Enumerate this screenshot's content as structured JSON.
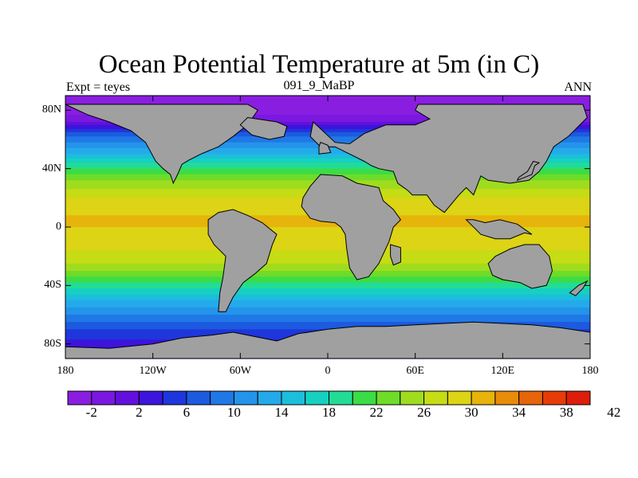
{
  "chart_data": {
    "type": "heatmap",
    "title": "Ocean Potential Temperature at 5m (in C)",
    "subtitle_left": "Expt = teyes",
    "subtitle_center": "091_9_MaBP",
    "subtitle_right": "ANN",
    "x_range": [
      -180,
      180
    ],
    "y_range": [
      -90,
      90
    ],
    "x_ticks": [
      {
        "value": -180,
        "label": "180"
      },
      {
        "value": -120,
        "label": "120W"
      },
      {
        "value": -60,
        "label": "60W"
      },
      {
        "value": 0,
        "label": "0"
      },
      {
        "value": 60,
        "label": "60E"
      },
      {
        "value": 120,
        "label": "120E"
      },
      {
        "value": 180,
        "label": "180"
      }
    ],
    "y_ticks": [
      {
        "value": 80,
        "label": "80N"
      },
      {
        "value": 40,
        "label": "40N"
      },
      {
        "value": 0,
        "label": "0"
      },
      {
        "value": -40,
        "label": "40S"
      },
      {
        "value": -80,
        "label": "80S"
      }
    ],
    "zonal_temperature_profile": [
      {
        "lat": 90,
        "temp": -4
      },
      {
        "lat": 80,
        "temp": -3
      },
      {
        "lat": 72,
        "temp": 0
      },
      {
        "lat": 62,
        "temp": 8
      },
      {
        "lat": 52,
        "temp": 13
      },
      {
        "lat": 42,
        "temp": 19
      },
      {
        "lat": 32,
        "temp": 24
      },
      {
        "lat": 20,
        "temp": 28
      },
      {
        "lat": 8,
        "temp": 30
      },
      {
        "lat": 0,
        "temp": 30
      },
      {
        "lat": -10,
        "temp": 29
      },
      {
        "lat": -22,
        "temp": 27
      },
      {
        "lat": -32,
        "temp": 23
      },
      {
        "lat": -42,
        "temp": 18
      },
      {
        "lat": -52,
        "temp": 13
      },
      {
        "lat": -62,
        "temp": 9
      },
      {
        "lat": -72,
        "temp": 5
      },
      {
        "lat": -82,
        "temp": 3
      },
      {
        "lat": -90,
        "temp": 2
      }
    ],
    "land_masses": [
      {
        "name": "north-america",
        "coords": [
          [
            -180,
            84
          ],
          [
            -165,
            77
          ],
          [
            -150,
            72
          ],
          [
            -135,
            66
          ],
          [
            -125,
            58
          ],
          [
            -118,
            45
          ],
          [
            -113,
            40
          ],
          [
            -108,
            36
          ],
          [
            -106,
            30
          ],
          [
            -103,
            36
          ],
          [
            -100,
            43
          ],
          [
            -95,
            46
          ],
          [
            -87,
            50
          ],
          [
            -75,
            55
          ],
          [
            -65,
            62
          ],
          [
            -55,
            70
          ],
          [
            -48,
            80
          ],
          [
            -55,
            84
          ],
          [
            -80,
            84
          ],
          [
            -120,
            84
          ],
          [
            -150,
            84
          ]
        ]
      },
      {
        "name": "greenland",
        "coords": [
          [
            -55,
            75
          ],
          [
            -35,
            72
          ],
          [
            -28,
            69
          ],
          [
            -30,
            62
          ],
          [
            -40,
            60
          ],
          [
            -52,
            63
          ],
          [
            -60,
            70
          ]
        ]
      },
      {
        "name": "europe-asia",
        "coords": [
          [
            -10,
            72
          ],
          [
            5,
            58
          ],
          [
            15,
            57
          ],
          [
            25,
            64
          ],
          [
            40,
            70
          ],
          [
            60,
            70
          ],
          [
            70,
            74
          ],
          [
            60,
            80
          ],
          [
            62,
            84
          ],
          [
            100,
            84
          ],
          [
            140,
            84
          ],
          [
            175,
            84
          ],
          [
            178,
            75
          ],
          [
            175,
            72
          ],
          [
            165,
            62
          ],
          [
            155,
            55
          ],
          [
            150,
            45
          ],
          [
            145,
            38
          ],
          [
            138,
            32
          ],
          [
            125,
            30
          ],
          [
            110,
            32
          ],
          [
            105,
            35
          ],
          [
            100,
            22
          ],
          [
            95,
            27
          ],
          [
            90,
            22
          ],
          [
            80,
            10
          ],
          [
            73,
            15
          ],
          [
            68,
            22
          ],
          [
            58,
            22
          ],
          [
            55,
            25
          ],
          [
            48,
            30
          ],
          [
            45,
            38
          ],
          [
            35,
            40
          ],
          [
            30,
            42
          ],
          [
            25,
            45
          ],
          [
            15,
            50
          ],
          [
            5,
            55
          ],
          [
            -5,
            55
          ],
          [
            -12,
            62
          ]
        ]
      },
      {
        "name": "africa",
        "coords": [
          [
            -17,
            20
          ],
          [
            -18,
            14
          ],
          [
            -12,
            6
          ],
          [
            -5,
            4
          ],
          [
            5,
            3
          ],
          [
            9,
            0
          ],
          [
            12,
            -5
          ],
          [
            13,
            -15
          ],
          [
            15,
            -28
          ],
          [
            20,
            -36
          ],
          [
            28,
            -34
          ],
          [
            35,
            -25
          ],
          [
            42,
            -10
          ],
          [
            45,
            0
          ],
          [
            50,
            5
          ],
          [
            45,
            12
          ],
          [
            38,
            18
          ],
          [
            35,
            27
          ],
          [
            20,
            30
          ],
          [
            10,
            35
          ],
          [
            -5,
            36
          ],
          [
            -12,
            28
          ]
        ]
      },
      {
        "name": "south-america",
        "coords": [
          [
            -82,
            5
          ],
          [
            -75,
            10
          ],
          [
            -65,
            12
          ],
          [
            -55,
            8
          ],
          [
            -45,
            3
          ],
          [
            -35,
            -5
          ],
          [
            -38,
            -12
          ],
          [
            -42,
            -25
          ],
          [
            -50,
            -32
          ],
          [
            -58,
            -38
          ],
          [
            -65,
            -48
          ],
          [
            -70,
            -58
          ],
          [
            -75,
            -58
          ],
          [
            -74,
            -45
          ],
          [
            -72,
            -35
          ],
          [
            -70,
            -20
          ],
          [
            -78,
            -12
          ],
          [
            -82,
            -5
          ]
        ]
      },
      {
        "name": "australia",
        "coords": [
          [
            110,
            -25
          ],
          [
            115,
            -20
          ],
          [
            125,
            -15
          ],
          [
            135,
            -12
          ],
          [
            145,
            -12
          ],
          [
            152,
            -20
          ],
          [
            154,
            -30
          ],
          [
            150,
            -40
          ],
          [
            140,
            -42
          ],
          [
            132,
            -38
          ],
          [
            120,
            -36
          ],
          [
            113,
            -33
          ]
        ]
      },
      {
        "name": "antarctica",
        "coords": [
          [
            -180,
            -82
          ],
          [
            -150,
            -83
          ],
          [
            -120,
            -80
          ],
          [
            -100,
            -76
          ],
          [
            -80,
            -74
          ],
          [
            -65,
            -72
          ],
          [
            -50,
            -75
          ],
          [
            -35,
            -78
          ],
          [
            -20,
            -73
          ],
          [
            0,
            -70
          ],
          [
            20,
            -68
          ],
          [
            40,
            -68
          ],
          [
            60,
            -67
          ],
          [
            80,
            -66
          ],
          [
            100,
            -65
          ],
          [
            120,
            -66
          ],
          [
            140,
            -67
          ],
          [
            160,
            -69
          ],
          [
            180,
            -72
          ],
          [
            180,
            -90
          ],
          [
            -180,
            -90
          ]
        ]
      },
      {
        "name": "new-zealand",
        "coords": [
          [
            166,
            -45
          ],
          [
            172,
            -40
          ],
          [
            178,
            -37
          ],
          [
            175,
            -42
          ],
          [
            170,
            -47
          ]
        ]
      },
      {
        "name": "japan",
        "coords": [
          [
            130,
            32
          ],
          [
            135,
            34
          ],
          [
            140,
            36
          ],
          [
            142,
            42
          ],
          [
            145,
            44
          ],
          [
            141,
            45
          ],
          [
            137,
            38
          ],
          [
            131,
            34
          ]
        ]
      },
      {
        "name": "madagascar",
        "coords": [
          [
            43,
            -12
          ],
          [
            50,
            -14
          ],
          [
            50,
            -24
          ],
          [
            45,
            -26
          ],
          [
            43,
            -20
          ]
        ]
      },
      {
        "name": "britain",
        "coords": [
          [
            -6,
            50
          ],
          [
            2,
            51
          ],
          [
            0,
            56
          ],
          [
            -5,
            58
          ],
          [
            -6,
            55
          ]
        ]
      },
      {
        "name": "indonesia",
        "coords": [
          [
            95,
            5
          ],
          [
            105,
            -5
          ],
          [
            115,
            -8
          ],
          [
            125,
            -8
          ],
          [
            135,
            -4
          ],
          [
            140,
            -5
          ],
          [
            130,
            2
          ],
          [
            118,
            5
          ],
          [
            108,
            3
          ],
          [
            100,
            5
          ]
        ]
      }
    ],
    "colorbar": {
      "colors": [
        "#8a1ee0",
        "#7a18e0",
        "#6410dc",
        "#3c14dc",
        "#1e37dc",
        "#1c5ae0",
        "#2078e6",
        "#2494ea",
        "#24aaea",
        "#1cbedc",
        "#16d0c0",
        "#22dc96",
        "#3cdc46",
        "#6edc28",
        "#a0dc1e",
        "#c6dc14",
        "#dcd414",
        "#e6b40a",
        "#e68c0a",
        "#e6640a",
        "#e63c0a",
        "#dc1e0a"
      ],
      "ticks": [
        {
          "value": -2,
          "label": "-2"
        },
        {
          "value": 2,
          "label": "2"
        },
        {
          "value": 6,
          "label": "6"
        },
        {
          "value": 10,
          "label": "10"
        },
        {
          "value": 14,
          "label": "14"
        },
        {
          "value": 18,
          "label": "18"
        },
        {
          "value": 22,
          "label": "22"
        },
        {
          "value": 26,
          "label": "26"
        },
        {
          "value": 30,
          "label": "30"
        },
        {
          "value": 34,
          "label": "34"
        },
        {
          "value": 38,
          "label": "38"
        },
        {
          "value": 42,
          "label": "42"
        }
      ],
      "min": -4,
      "step": 2
    },
    "land_color": "#a0a0a0"
  }
}
